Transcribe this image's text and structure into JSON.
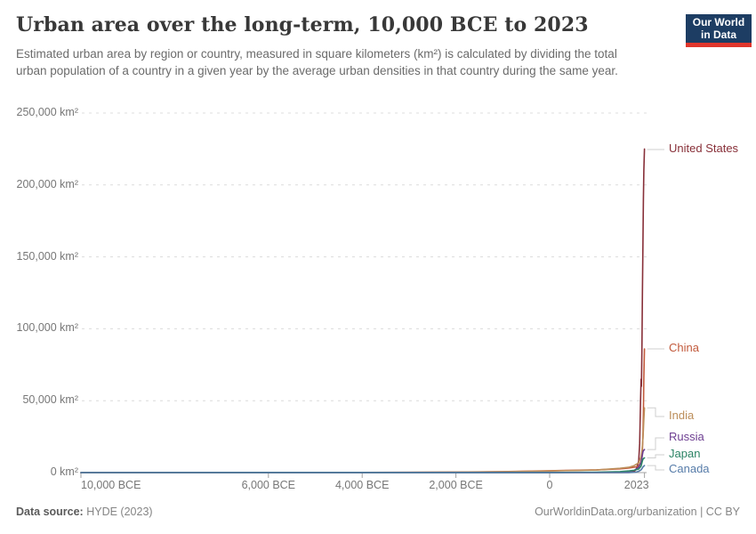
{
  "header": {
    "title": "Urban area over the long-term, 10,000 BCE to 2023",
    "subtitle": "Estimated urban area by region or country, measured in square kilometers (km²) is calculated by dividing the total urban population of a country in a given year by the average urban densities in that country during the same year.",
    "logo": {
      "line1": "Our World",
      "line2": "in Data",
      "bg_color": "#1d3d63",
      "accent_color": "#e0362c"
    }
  },
  "chart_data": {
    "type": "line",
    "title": "Urban area over the long-term, 10,000 BCE to 2023",
    "xlabel": "",
    "ylabel": "km²",
    "xlim": [
      -10000,
      2023
    ],
    "ylim": [
      0,
      250000
    ],
    "grid": "horizontal-dashed",
    "legend_position": "right-of-line-ends",
    "x_ticks": [
      {
        "year": -10000,
        "label": "10,000 BCE"
      },
      {
        "year": -6000,
        "label": "6,000 BCE"
      },
      {
        "year": -4000,
        "label": "4,000 BCE"
      },
      {
        "year": -2000,
        "label": "2,000 BCE"
      },
      {
        "year": 0,
        "label": "0"
      },
      {
        "year": 2023,
        "label": "2023"
      }
    ],
    "y_ticks": [
      {
        "value": 0,
        "label": "0 km²"
      },
      {
        "value": 50000,
        "label": "50,000 km²"
      },
      {
        "value": 100000,
        "label": "100,000 km²"
      },
      {
        "value": 150000,
        "label": "150,000 km²"
      },
      {
        "value": 200000,
        "label": "200,000 km²"
      },
      {
        "value": 250000,
        "label": "250,000 km²"
      }
    ],
    "series": [
      {
        "name": "United States",
        "color": "#883039",
        "points": [
          [
            -10000,
            0
          ],
          [
            -1000,
            0
          ],
          [
            1000,
            0
          ],
          [
            1500,
            0
          ],
          [
            1700,
            100
          ],
          [
            1800,
            600
          ],
          [
            1850,
            2500
          ],
          [
            1900,
            8000
          ],
          [
            1920,
            20000
          ],
          [
            1940,
            50000
          ],
          [
            1950,
            65000
          ],
          [
            1958,
            60000
          ],
          [
            1970,
            90000
          ],
          [
            1980,
            125000
          ],
          [
            1990,
            160000
          ],
          [
            2000,
            190000
          ],
          [
            2010,
            210000
          ],
          [
            2023,
            225000
          ]
        ]
      },
      {
        "name": "China",
        "color": "#C25A3C",
        "points": [
          [
            -10000,
            0
          ],
          [
            -4000,
            100
          ],
          [
            -2000,
            400
          ],
          [
            -1000,
            700
          ],
          [
            0,
            1300
          ],
          [
            500,
            1600
          ],
          [
            1000,
            1900
          ],
          [
            1500,
            2600
          ],
          [
            1700,
            3200
          ],
          [
            1800,
            3800
          ],
          [
            1850,
            4000
          ],
          [
            1900,
            4500
          ],
          [
            1950,
            7500
          ],
          [
            1970,
            11000
          ],
          [
            1980,
            16000
          ],
          [
            1990,
            26000
          ],
          [
            2000,
            42000
          ],
          [
            2010,
            66000
          ],
          [
            2023,
            86000
          ]
        ]
      },
      {
        "name": "India",
        "color": "#BC8E5A",
        "points": [
          [
            -10000,
            0
          ],
          [
            -3000,
            100
          ],
          [
            -2000,
            300
          ],
          [
            -1000,
            600
          ],
          [
            0,
            1100
          ],
          [
            500,
            1400
          ],
          [
            1000,
            1800
          ],
          [
            1500,
            3000
          ],
          [
            1700,
            3800
          ],
          [
            1800,
            4800
          ],
          [
            1900,
            6800
          ],
          [
            1950,
            11000
          ],
          [
            1970,
            15000
          ],
          [
            1980,
            19000
          ],
          [
            1990,
            24000
          ],
          [
            2000,
            30000
          ],
          [
            2010,
            37000
          ],
          [
            2023,
            45000
          ]
        ]
      },
      {
        "name": "Russia",
        "color": "#6D3E91",
        "points": [
          [
            -10000,
            0
          ],
          [
            0,
            50
          ],
          [
            1000,
            150
          ],
          [
            1500,
            400
          ],
          [
            1700,
            800
          ],
          [
            1800,
            1500
          ],
          [
            1900,
            3800
          ],
          [
            1950,
            7000
          ],
          [
            1970,
            10500
          ],
          [
            1980,
            12500
          ],
          [
            1990,
            14500
          ],
          [
            2000,
            15200
          ],
          [
            2023,
            16000
          ]
        ]
      },
      {
        "name": "Japan",
        "color": "#2C8465",
        "points": [
          [
            -10000,
            0
          ],
          [
            0,
            50
          ],
          [
            1000,
            300
          ],
          [
            1500,
            700
          ],
          [
            1700,
            1200
          ],
          [
            1800,
            1600
          ],
          [
            1900,
            2500
          ],
          [
            1950,
            4500
          ],
          [
            1970,
            7000
          ],
          [
            1980,
            8200
          ],
          [
            1990,
            9200
          ],
          [
            2000,
            9700
          ],
          [
            2023,
            10200
          ]
        ]
      },
      {
        "name": "Canada",
        "color": "#577CA9",
        "points": [
          [
            -10000,
            0
          ],
          [
            1500,
            0
          ],
          [
            1700,
            50
          ],
          [
            1800,
            200
          ],
          [
            1850,
            400
          ],
          [
            1900,
            900
          ],
          [
            1950,
            1900
          ],
          [
            1970,
            2800
          ],
          [
            1980,
            3300
          ],
          [
            1990,
            3900
          ],
          [
            2000,
            4300
          ],
          [
            2023,
            4900
          ]
        ]
      }
    ]
  },
  "footer": {
    "source_label": "Data source:",
    "source_value": "HYDE (2023)",
    "link": "OurWorldinData.org/urbanization",
    "separator": "|",
    "license": "CC BY"
  }
}
